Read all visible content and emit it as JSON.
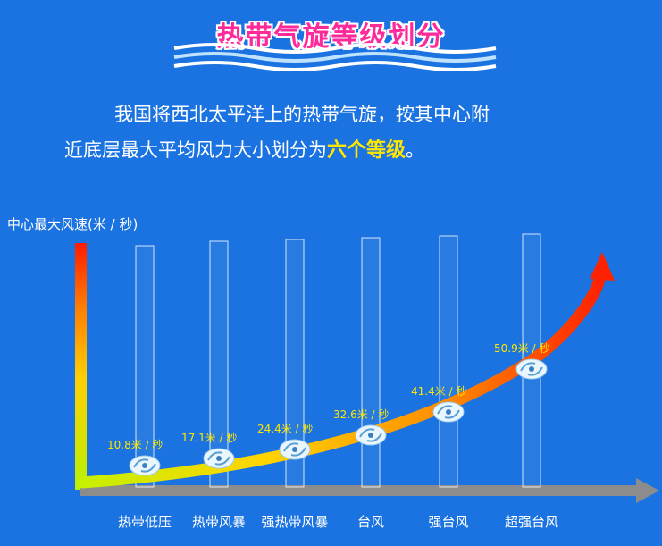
{
  "title": "热带气旋等级划分",
  "intro": {
    "line1": "我国将西北太平洋上的热带气旋，按其中心附",
    "line2_prefix": "近底层最大平均风力大小划分为",
    "line2_highlight": "六个等级",
    "line2_suffix": "。"
  },
  "ylabel": "中心最大风速(米 / 秒)",
  "colors": {
    "background": "#1a73e0",
    "title": "#ff2a9a",
    "highlight": "#ffe600"
  },
  "levels": [
    {
      "name": "热带低压",
      "value_text": "10.8米 / 秒",
      "value": 10.8,
      "icon": "cyclone-icon"
    },
    {
      "name": "热带风暴",
      "value_text": "17.1米 / 秒",
      "value": 17.1,
      "icon": "cyclone-icon"
    },
    {
      "name": "强热带风暴",
      "value_text": "24.4米 / 秒",
      "value": 24.4,
      "icon": "cyclone-icon"
    },
    {
      "name": "台风",
      "value_text": "32.6米 / 秒",
      "value": 32.6,
      "icon": "cyclone-icon"
    },
    {
      "name": "强台风",
      "value_text": "41.4米 / 秒",
      "value": 41.4,
      "icon": "cyclone-icon"
    },
    {
      "name": "超强台风",
      "value_text": "50.9米 / 秒",
      "value": 50.9,
      "icon": "cyclone-icon"
    }
  ]
}
